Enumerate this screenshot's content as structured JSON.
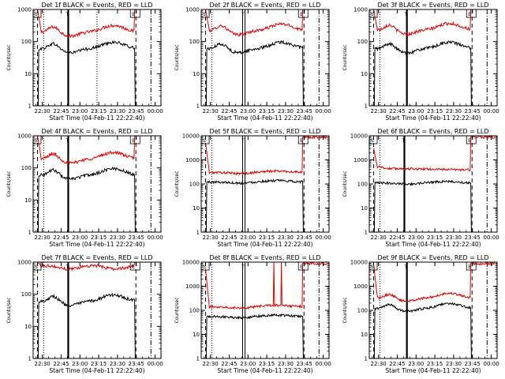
{
  "style": {
    "events_color": "#000000",
    "lld_color": "#e00000",
    "frame_color": "#000000"
  },
  "chart_data": [
    {
      "type": "line",
      "title": "Det 1f BLACK = Events, RED = LLD",
      "xlabel": "Start Time (04-Feb-11 22:22:40)",
      "ylabel": "Counts/sec",
      "y_scale": "log",
      "ylim": [
        1,
        1000
      ],
      "y_ticks": [
        "1",
        "10",
        "100",
        "1000"
      ],
      "x_ticks": [
        "22:30",
        "22:45",
        "23:00",
        "23:15",
        "23:30",
        "23:45",
        "00:00"
      ],
      "x_tick_times": [
        7.33,
        22.33,
        37.33,
        52.33,
        67.33,
        82.33,
        97.33
      ],
      "xlim": [
        0,
        102
      ],
      "corner_labels": [
        "S",
        "T",
        "E"
      ],
      "series": [
        {
          "name": "LLD",
          "color": "#e00000",
          "profile": "A",
          "base": 200,
          "start": 1000,
          "end": 1000,
          "spikes": []
        },
        {
          "name": "Events",
          "color": "#000000",
          "profile": "A",
          "base": 60,
          "start": 0,
          "end": 0,
          "spikes": []
        }
      ],
      "vlines": [
        {
          "x": 3.5,
          "style": "dashed"
        },
        {
          "x": 8.5,
          "style": "dotted"
        },
        {
          "x": 28,
          "style": "thick"
        },
        {
          "x": 51,
          "style": "dotted"
        },
        {
          "x": 82,
          "style": "dashed"
        },
        {
          "x": 94,
          "style": "dashdot"
        }
      ]
    },
    {
      "type": "line",
      "title": "Det 2f BLACK = Events, RED = LLD",
      "xlabel": "Start Time (04-Feb-11 22:22:40)",
      "ylabel": "Counts/sec",
      "y_scale": "log",
      "ylim": [
        1,
        1000
      ],
      "y_ticks": [
        "1",
        "10",
        "100",
        "1000"
      ],
      "x_ticks": [
        "22:30",
        "22:45",
        "23:00",
        "23:15",
        "23:30",
        "23:45",
        "00:00"
      ],
      "x_tick_times": [
        7.33,
        22.33,
        37.33,
        52.33,
        67.33,
        82.33,
        97.33
      ],
      "xlim": [
        0,
        102
      ],
      "corner_labels": [
        "S",
        "T",
        "E"
      ],
      "series": [
        {
          "name": "LLD",
          "color": "#e00000",
          "profile": "A",
          "base": 220,
          "start": 1000,
          "end": 1000,
          "spikes": []
        },
        {
          "name": "Events",
          "color": "#000000",
          "profile": "A",
          "base": 60,
          "start": 0,
          "end": 0,
          "spikes": []
        }
      ],
      "vlines": [
        {
          "x": 3.5,
          "style": "dashed"
        },
        {
          "x": 8.5,
          "style": "dotted"
        },
        {
          "x": 34,
          "style": "double"
        },
        {
          "x": 82,
          "style": "dashed"
        },
        {
          "x": 94,
          "style": "dashdot"
        }
      ]
    },
    {
      "type": "line",
      "title": "Det 3f BLACK = Events, RED = LLD",
      "xlabel": "Start Time (04-Feb-11 22:22:40)",
      "ylabel": "Counts/sec",
      "y_scale": "log",
      "ylim": [
        1,
        1000
      ],
      "y_ticks": [
        "1",
        "10",
        "100",
        "1000"
      ],
      "x_ticks": [
        "22:30",
        "22:45",
        "23:00",
        "23:15",
        "23:30",
        "23:45",
        "00:00"
      ],
      "x_tick_times": [
        7.33,
        22.33,
        37.33,
        52.33,
        67.33,
        82.33,
        97.33
      ],
      "xlim": [
        0,
        102
      ],
      "corner_labels": [
        "S",
        "T",
        "E"
      ],
      "series": [
        {
          "name": "LLD",
          "color": "#e00000",
          "profile": "A",
          "base": 230,
          "start": 1000,
          "end": 1000,
          "spikes": []
        },
        {
          "name": "Events",
          "color": "#000000",
          "profile": "A",
          "base": 60,
          "start": 0,
          "end": 0,
          "spikes": []
        }
      ],
      "vlines": [
        {
          "x": 3.5,
          "style": "dashed"
        },
        {
          "x": 8.5,
          "style": "dotted"
        },
        {
          "x": 30,
          "style": "thick"
        },
        {
          "x": 82,
          "style": "dashed"
        },
        {
          "x": 94,
          "style": "dashdot"
        }
      ]
    },
    {
      "type": "line",
      "title": "Det 4f BLACK = Events, RED = LLD",
      "xlabel": "Start Time (04-Feb-11 22:22:40)",
      "ylabel": "Counts/sec",
      "y_scale": "log",
      "ylim": [
        1,
        1000
      ],
      "y_ticks": [
        "1",
        "10",
        "100",
        "1000"
      ],
      "x_ticks": [
        "22:30",
        "22:45",
        "23:00",
        "23:15",
        "23:30",
        "23:45",
        "00:00"
      ],
      "x_tick_times": [
        7.33,
        22.33,
        37.33,
        52.33,
        67.33,
        82.33,
        97.33
      ],
      "xlim": [
        0,
        102
      ],
      "corner_labels": [
        "S",
        "T",
        "E"
      ],
      "series": [
        {
          "name": "LLD",
          "color": "#e00000",
          "profile": "A",
          "base": 190,
          "start": 1000,
          "end": 1000,
          "spikes": []
        },
        {
          "name": "Events",
          "color": "#000000",
          "profile": "A",
          "base": 60,
          "start": 0,
          "end": 0,
          "spikes": []
        }
      ],
      "vlines": [
        {
          "x": 3.5,
          "style": "dashed"
        },
        {
          "x": 8.5,
          "style": "dotted"
        },
        {
          "x": 28,
          "style": "thick"
        },
        {
          "x": 82,
          "style": "dashed"
        },
        {
          "x": 94,
          "style": "dashdot"
        }
      ]
    },
    {
      "type": "line",
      "title": "Det 5f BLACK = Events, RED = LLD",
      "xlabel": "Start Time (04-Feb-11 22:22:40)",
      "ylabel": "Counts/sec",
      "y_scale": "log",
      "ylim": [
        1,
        10000
      ],
      "y_ticks": [
        "1",
        "10",
        "100",
        "1000",
        "10000"
      ],
      "x_ticks": [
        "22:30",
        "22:45",
        "23:00",
        "23:15",
        "23:30",
        "23:45",
        "00:00"
      ],
      "x_tick_times": [
        7.33,
        22.33,
        37.33,
        52.33,
        67.33,
        82.33,
        97.33
      ],
      "xlim": [
        0,
        102
      ],
      "corner_labels": [
        "S",
        "T",
        "E"
      ],
      "series": [
        {
          "name": "LLD",
          "color": "#e00000",
          "profile": "B",
          "base": 300,
          "start": 5000,
          "end": 9000,
          "spikes": []
        },
        {
          "name": "Events",
          "color": "#000000",
          "profile": "B",
          "base": 120,
          "start": 0,
          "end": 0,
          "spikes": []
        }
      ],
      "vlines": [
        {
          "x": 3.5,
          "style": "dashed"
        },
        {
          "x": 8.5,
          "style": "dotted"
        },
        {
          "x": 34,
          "style": "double"
        },
        {
          "x": 82,
          "style": "dashed"
        },
        {
          "x": 94,
          "style": "dashdot"
        }
      ]
    },
    {
      "type": "line",
      "title": "Det 6f BLACK = Events, RED = LLD",
      "xlabel": "Start Time (04-Feb-11 22:22:40)",
      "ylabel": "Counts/sec",
      "y_scale": "log",
      "ylim": [
        1,
        10000
      ],
      "y_ticks": [
        "1",
        "10",
        "100",
        "1000",
        "10000"
      ],
      "x_ticks": [
        "22:30",
        "22:45",
        "23:00",
        "23:15",
        "23:30",
        "23:45",
        "00:00"
      ],
      "x_tick_times": [
        7.33,
        22.33,
        37.33,
        52.33,
        67.33,
        82.33,
        97.33
      ],
      "xlim": [
        0,
        102
      ],
      "corner_labels": [
        "S",
        "T",
        "E"
      ],
      "series": [
        {
          "name": "LLD",
          "color": "#e00000",
          "profile": "C",
          "base": 420,
          "start": 3000,
          "end": 9000,
          "spikes": []
        },
        {
          "name": "Events",
          "color": "#000000",
          "profile": "B",
          "base": 110,
          "start": 0,
          "end": 0,
          "spikes": []
        }
      ],
      "vlines": [
        {
          "x": 3.5,
          "style": "dashed"
        },
        {
          "x": 8.5,
          "style": "dotted"
        },
        {
          "x": 28,
          "style": "thick"
        },
        {
          "x": 82,
          "style": "dashed"
        },
        {
          "x": 94,
          "style": "dashdot"
        }
      ]
    },
    {
      "type": "line",
      "title": "Det 7f BLACK = Events, RED = LLD",
      "xlabel": "Start Time (04-Feb-11 22:22:40)",
      "ylabel": "Counts/sec",
      "y_scale": "log",
      "ylim": [
        1,
        1000
      ],
      "y_ticks": [
        "1",
        "10",
        "100",
        "1000"
      ],
      "x_ticks": [
        "22:30",
        "22:45",
        "23:00",
        "23:15",
        "23:30",
        "23:45",
        "00:00"
      ],
      "x_tick_times": [
        7.33,
        22.33,
        37.33,
        52.33,
        67.33,
        82.33,
        97.33
      ],
      "xlim": [
        0,
        102
      ],
      "corner_labels": [
        "S",
        "T",
        "E"
      ],
      "series": [
        {
          "name": "LLD",
          "color": "#e00000",
          "profile": "D",
          "base": 700,
          "start": 1000,
          "end": 1000,
          "spikes": []
        },
        {
          "name": "Events",
          "color": "#000000",
          "profile": "A",
          "base": 60,
          "start": 0,
          "end": 0,
          "spikes": []
        }
      ],
      "vlines": [
        {
          "x": 3.5,
          "style": "dashed"
        },
        {
          "x": 8.5,
          "style": "dotted"
        },
        {
          "x": 28,
          "style": "thick"
        },
        {
          "x": 82,
          "style": "dashed"
        },
        {
          "x": 94,
          "style": "dashdot"
        }
      ]
    },
    {
      "type": "line",
      "title": "Det 8f BLACK = Events, RED = LLD",
      "xlabel": "Start Time (04-Feb-11 22:22:40)",
      "ylabel": "Counts/sec",
      "y_scale": "log",
      "ylim": [
        1,
        10000
      ],
      "y_ticks": [
        "1",
        "10",
        "100",
        "1000",
        "10000"
      ],
      "x_ticks": [
        "22:30",
        "22:45",
        "23:00",
        "23:15",
        "23:30",
        "23:45",
        "00:00"
      ],
      "x_tick_times": [
        7.33,
        22.33,
        37.33,
        52.33,
        67.33,
        82.33,
        97.33
      ],
      "xlim": [
        0,
        102
      ],
      "corner_labels": [
        "S",
        "T",
        "E"
      ],
      "series": [
        {
          "name": "LLD",
          "color": "#e00000",
          "profile": "B",
          "base": 140,
          "start": 5000,
          "end": 9000,
          "spikes": [
            {
              "x": 58,
              "value": 10000
            },
            {
              "x": 64,
              "value": 10000
            }
          ]
        },
        {
          "name": "Events",
          "color": "#000000",
          "profile": "B",
          "base": 55,
          "start": 0,
          "end": 0,
          "spikes": []
        }
      ],
      "vlines": [
        {
          "x": 3.5,
          "style": "dashed"
        },
        {
          "x": 8.5,
          "style": "dotted"
        },
        {
          "x": 34,
          "style": "double"
        },
        {
          "x": 82,
          "style": "dashed"
        },
        {
          "x": 94,
          "style": "dashdot"
        }
      ]
    },
    {
      "type": "line",
      "title": "Det 9f BLACK = Events, RED = LLD",
      "xlabel": "Start Time (04-Feb-11 22:22:40)",
      "ylabel": "Counts/sec",
      "y_scale": "log",
      "ylim": [
        1,
        10000
      ],
      "y_ticks": [
        "1",
        "10",
        "100",
        "1000",
        "10000"
      ],
      "x_ticks": [
        "22:30",
        "22:45",
        "23:00",
        "23:15",
        "23:30",
        "23:45",
        "00:00"
      ],
      "x_tick_times": [
        7.33,
        22.33,
        37.33,
        52.33,
        67.33,
        82.33,
        97.33
      ],
      "xlim": [
        0,
        102
      ],
      "corner_labels": [
        "S",
        "T",
        "E"
      ],
      "series": [
        {
          "name": "LLD",
          "color": "#e00000",
          "profile": "A",
          "base": 320,
          "start": 8000,
          "end": 9000,
          "spikes": []
        },
        {
          "name": "Events",
          "color": "#000000",
          "profile": "A",
          "base": 120,
          "start": 0,
          "end": 0,
          "spikes": []
        }
      ],
      "vlines": [
        {
          "x": 3.5,
          "style": "dashed"
        },
        {
          "x": 8.5,
          "style": "dotted"
        },
        {
          "x": 30,
          "style": "thick"
        },
        {
          "x": 82,
          "style": "dashed"
        },
        {
          "x": 94,
          "style": "dashdot"
        }
      ]
    }
  ]
}
